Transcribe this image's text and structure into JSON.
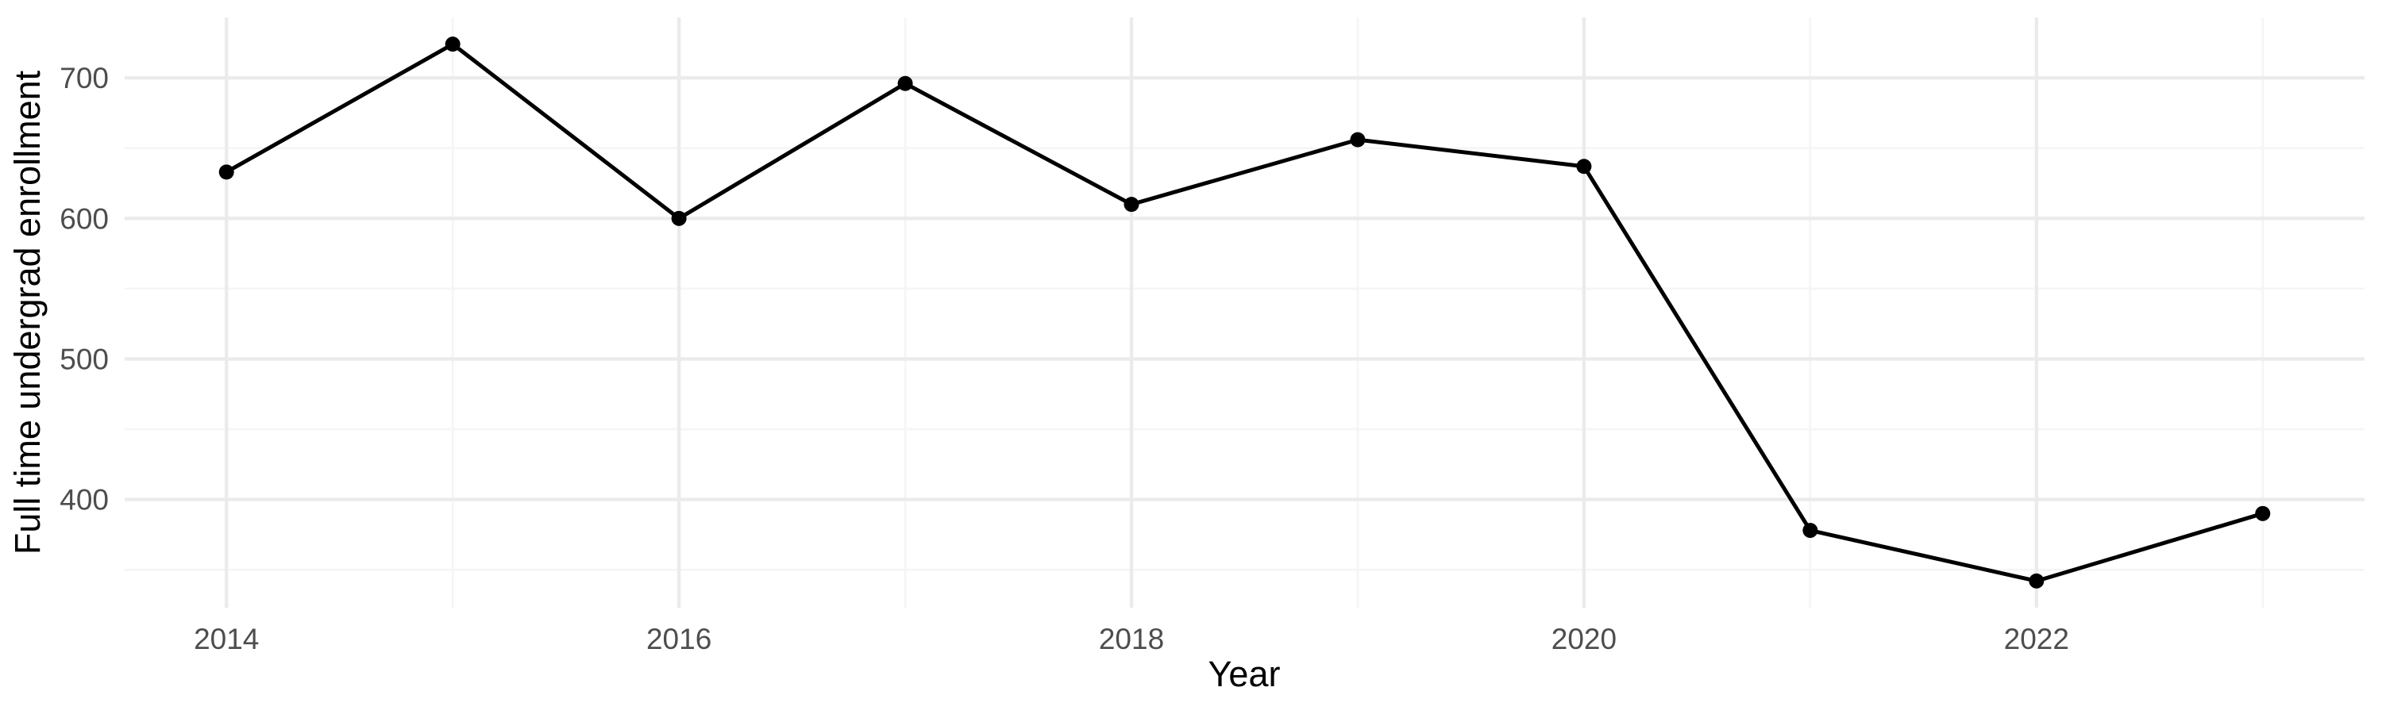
{
  "chart_data": {
    "type": "line",
    "title": "",
    "xlabel": "Year",
    "ylabel": "Full time undergrad enrollment",
    "series": [
      {
        "name": "Full time undergrad enrollment",
        "x": [
          2014,
          2015,
          2016,
          2017,
          2018,
          2019,
          2020,
          2021,
          2022,
          2023
        ],
        "values": [
          633,
          724,
          600,
          696,
          610,
          656,
          637,
          378,
          342,
          390
        ]
      }
    ],
    "x_ticks": [
      2014,
      2016,
      2018,
      2020,
      2022
    ],
    "x_minor_gridlines": [
      2015,
      2017,
      2019,
      2021,
      2023
    ],
    "y_ticks": [
      400,
      500,
      600,
      700
    ],
    "y_minor_gridlines": [
      350,
      450,
      550,
      650
    ],
    "xlim": [
      2013.55,
      2023.45
    ],
    "ylim": [
      323,
      743
    ],
    "grid": "major+minor",
    "legend": false,
    "colors": {
      "background": "#ffffff",
      "line": "#000000",
      "point": "#000000",
      "grid_major": "#ebebeb",
      "grid_minor": "#f5f5f5",
      "tick_label": "#4d4d4d",
      "axis_title": "#000000"
    }
  }
}
